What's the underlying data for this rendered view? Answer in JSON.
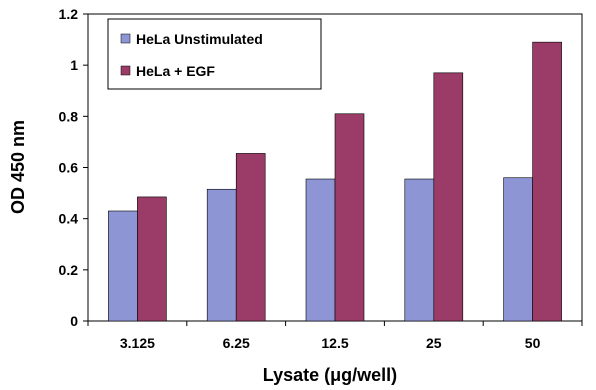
{
  "chart_data": {
    "type": "bar",
    "categories": [
      "3.125",
      "6.25",
      "12.5",
      "25",
      "50"
    ],
    "series": [
      {
        "name": "HeLa Unstimulated",
        "values": [
          0.43,
          0.515,
          0.555,
          0.555,
          0.56
        ],
        "color": "#8e95d4"
      },
      {
        "name": "HeLa + EGF",
        "values": [
          0.485,
          0.655,
          0.81,
          0.97,
          1.09
        ],
        "color": "#9a3b68"
      }
    ],
    "xlabel": "Lysate (μg/well)",
    "ylabel": "OD 450 nm",
    "ylim": [
      0,
      1.2
    ],
    "yticks": [
      "0",
      "0.2",
      "0.4",
      "0.6",
      "0.8",
      "1",
      "1.2"
    ],
    "grid": false,
    "legend_position": "top-left"
  }
}
